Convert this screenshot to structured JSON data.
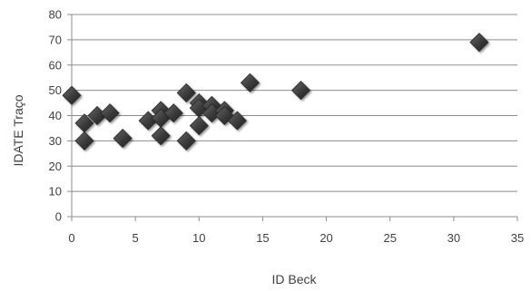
{
  "chart_data": {
    "type": "scatter",
    "title": "",
    "xlabel": "ID Beck",
    "ylabel": "IDATE  Traço",
    "xlim": [
      0,
      35
    ],
    "ylim": [
      0,
      80
    ],
    "x_ticks": [
      0,
      5,
      10,
      15,
      20,
      25,
      30,
      35
    ],
    "y_ticks": [
      0,
      10,
      20,
      30,
      40,
      50,
      60,
      70,
      80
    ],
    "grid": "horizontal",
    "legend": "none",
    "marker": "diamond",
    "marker_color": "#3f3f3f",
    "series": [
      {
        "points": [
          {
            "x": 0,
            "y": 48
          },
          {
            "x": 1,
            "y": 37
          },
          {
            "x": 1,
            "y": 30
          },
          {
            "x": 2,
            "y": 40
          },
          {
            "x": 3,
            "y": 41
          },
          {
            "x": 4,
            "y": 31
          },
          {
            "x": 6,
            "y": 38
          },
          {
            "x": 7,
            "y": 42
          },
          {
            "x": 7,
            "y": 39
          },
          {
            "x": 7,
            "y": 32
          },
          {
            "x": 8,
            "y": 41
          },
          {
            "x": 9,
            "y": 49
          },
          {
            "x": 9,
            "y": 30
          },
          {
            "x": 10,
            "y": 45
          },
          {
            "x": 10,
            "y": 43
          },
          {
            "x": 10,
            "y": 36
          },
          {
            "x": 11,
            "y": 44
          },
          {
            "x": 11,
            "y": 41
          },
          {
            "x": 12,
            "y": 42
          },
          {
            "x": 12,
            "y": 40
          },
          {
            "x": 13,
            "y": 38
          },
          {
            "x": 14,
            "y": 53
          },
          {
            "x": 18,
            "y": 50
          },
          {
            "x": 32,
            "y": 69
          }
        ]
      }
    ]
  }
}
